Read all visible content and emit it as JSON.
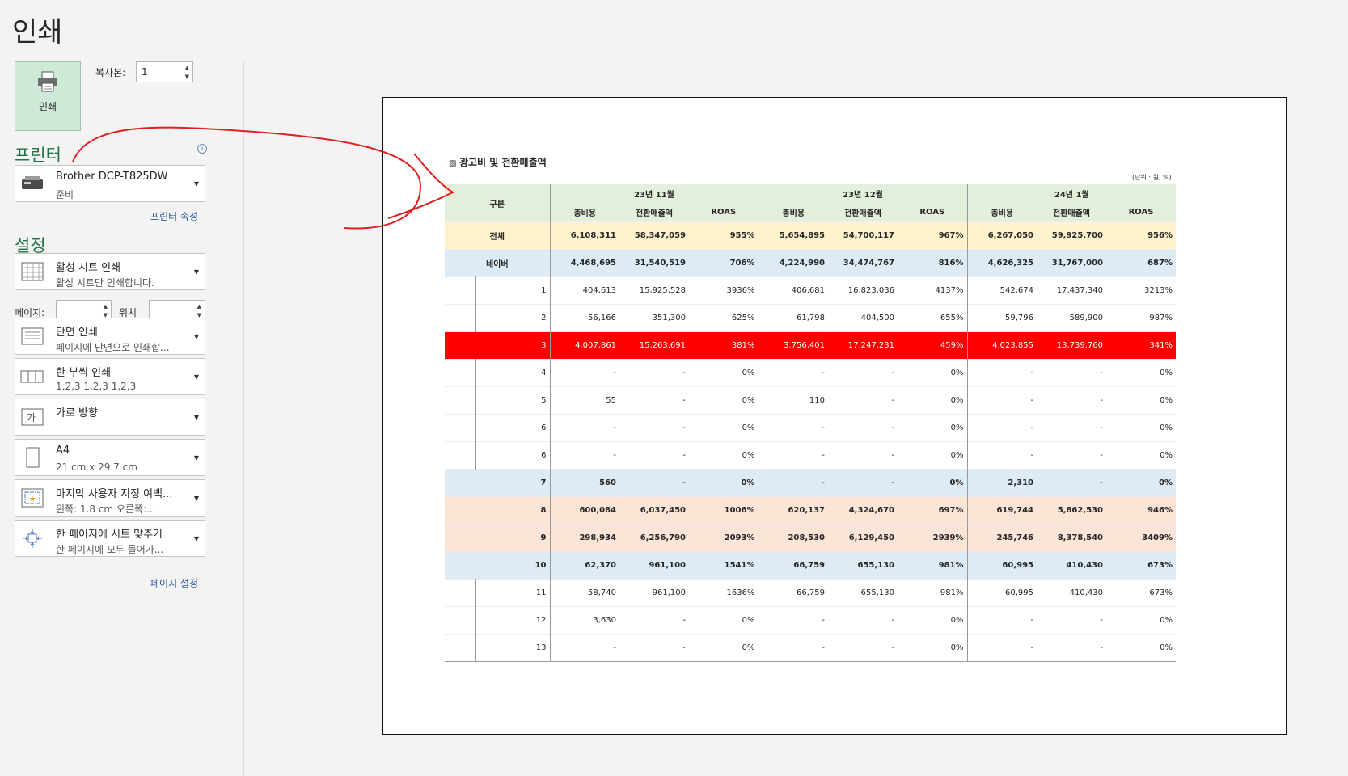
{
  "page": {
    "title": "인쇄"
  },
  "print_button": {
    "label": "인쇄"
  },
  "copies": {
    "label": "복사본:",
    "value": "1"
  },
  "printer": {
    "heading": "프린터",
    "name": "Brother DCP-T825DW",
    "status": "준비",
    "properties_link": "프린터 속성",
    "info_icon": "i"
  },
  "settings": {
    "heading": "설정",
    "items": [
      {
        "l1": "활성 시트 인쇄",
        "l2": "활성 시트만 인쇄합니다."
      },
      {
        "l1": "단면 인쇄",
        "l2": "페이지에 단면으로 인쇄합..."
      },
      {
        "l1": "한 부씩 인쇄",
        "l2": "1,2,3    1,2,3    1,2,3"
      },
      {
        "l1": "가로 방향",
        "l2": ""
      },
      {
        "l1": "A4",
        "l2": "21 cm x 29.7 cm"
      },
      {
        "l1": "마지막 사용자 지정 여백...",
        "l2": "왼쪽:  1.8 cm    오른쪽:..."
      },
      {
        "l1": "한 페이지에 시트 맞추기",
        "l2": "한 페이지에 모두 들어가..."
      }
    ],
    "pages_label": "페이지:",
    "to_label": "위치",
    "page_setup_link": "페이지 설정"
  },
  "preview": {
    "table_title": "광고비 및 전환매출액",
    "unit": "(단위 : 원, %)",
    "header": {
      "category": "구분",
      "months": [
        "23년 11월",
        "23년 12월",
        "24년 1월"
      ],
      "sub": [
        "총비용",
        "전환매출액",
        "ROAS"
      ]
    },
    "rows": [
      {
        "type": "total",
        "label": "전체",
        "vals": [
          "6,108,311",
          "58,347,059",
          "955%",
          "5,654,895",
          "54,700,117",
          "967%",
          "6,267,050",
          "59,925,700",
          "956%"
        ]
      },
      {
        "type": "naver",
        "label": "네이버",
        "vals": [
          "4,468,695",
          "31,540,519",
          "706%",
          "4,224,990",
          "34,474,767",
          "816%",
          "4,626,325",
          "31,767,000",
          "687%"
        ]
      },
      {
        "type": "white",
        "label": "1",
        "vals": [
          "404,613",
          "15,925,528",
          "3936%",
          "406,681",
          "16,823,036",
          "4137%",
          "542,674",
          "17,437,340",
          "3213%"
        ]
      },
      {
        "type": "white",
        "label": "2",
        "vals": [
          "56,166",
          "351,300",
          "625%",
          "61,798",
          "404,500",
          "655%",
          "59,796",
          "589,900",
          "987%"
        ]
      },
      {
        "type": "red",
        "label": "3",
        "vals": [
          "4,007,861",
          "15,263,691",
          "381%",
          "3,756,401",
          "17,247,231",
          "459%",
          "4,023,855",
          "13,739,760",
          "341%"
        ]
      },
      {
        "type": "white",
        "label": "4",
        "vals": [
          "-",
          "-",
          "0%",
          "-",
          "-",
          "0%",
          "-",
          "-",
          "0%"
        ]
      },
      {
        "type": "white",
        "label": "5",
        "vals": [
          "55",
          "-",
          "0%",
          "110",
          "-",
          "0%",
          "-",
          "-",
          "0%"
        ]
      },
      {
        "type": "white",
        "label": "6",
        "vals": [
          "-",
          "-",
          "0%",
          "-",
          "-",
          "0%",
          "-",
          "-",
          "0%"
        ]
      },
      {
        "type": "white",
        "label": "6",
        "vals": [
          "-",
          "-",
          "0%",
          "-",
          "-",
          "0%",
          "-",
          "-",
          "0%"
        ]
      },
      {
        "type": "blue",
        "label": "7",
        "vals": [
          "560",
          "-",
          "0%",
          "-",
          "-",
          "0%",
          "2,310",
          "-",
          "0%"
        ]
      },
      {
        "type": "orange",
        "label": "8",
        "vals": [
          "600,084",
          "6,037,450",
          "1006%",
          "620,137",
          "4,324,670",
          "697%",
          "619,744",
          "5,862,530",
          "946%"
        ]
      },
      {
        "type": "orange",
        "label": "9",
        "vals": [
          "298,934",
          "6,256,790",
          "2093%",
          "208,530",
          "6,129,450",
          "2939%",
          "245,746",
          "8,378,540",
          "3409%"
        ]
      },
      {
        "type": "blue",
        "label": "10",
        "vals": [
          "62,370",
          "961,100",
          "1541%",
          "66,759",
          "655,130",
          "981%",
          "60,995",
          "410,430",
          "673%"
        ]
      },
      {
        "type": "white",
        "label": "11",
        "vals": [
          "58,740",
          "961,100",
          "1636%",
          "66,759",
          "655,130",
          "981%",
          "60,995",
          "410,430",
          "673%"
        ]
      },
      {
        "type": "white",
        "label": "12",
        "vals": [
          "3,630",
          "-",
          "0%",
          "-",
          "-",
          "0%",
          "-",
          "-",
          "0%"
        ]
      },
      {
        "type": "white",
        "label": "13",
        "vals": [
          "-",
          "-",
          "0%",
          "-",
          "-",
          "0%",
          "-",
          "-",
          "0%"
        ]
      }
    ]
  },
  "colors": {
    "accent": "#217346",
    "print_button_bg": "#cfe9d9",
    "header_bg": "#e2efda",
    "total_bg": "#fff2cc",
    "naver_bg": "#ddebf7",
    "orange_bg": "#fce4d6",
    "highlight_red": "#ff0000",
    "annotation": "#e02020"
  }
}
